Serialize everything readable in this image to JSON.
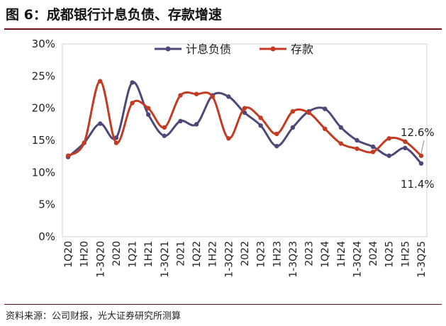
{
  "title": "图 6：成都银行计息负债、存款增速",
  "source": "资料来源：公司财报，光大证券研究所测算",
  "chart_data": {
    "type": "line",
    "categories": [
      "1Q20",
      "1H20",
      "1-3Q20",
      "2020",
      "1Q21",
      "1H21",
      "1-3Q21",
      "2021",
      "1Q22",
      "1H22",
      "1-3Q22",
      "2022",
      "1Q23",
      "1H23",
      "1-3Q23",
      "2023",
      "1Q24",
      "1H24",
      "1-3Q24",
      "2024",
      "1Q25",
      "1H25",
      "1-3Q25"
    ],
    "series": [
      {
        "name": "计息负债",
        "color": "#4d4878",
        "values": [
          12.4,
          14.6,
          17.6,
          15.4,
          24.0,
          19.0,
          15.7,
          18.0,
          17.5,
          22.0,
          21.8,
          19.3,
          17.3,
          14.1,
          17.0,
          19.5,
          19.9,
          17.0,
          15.0,
          14.0,
          12.6,
          13.8,
          11.4
        ]
      },
      {
        "name": "存款",
        "color": "#c23b22",
        "values": [
          12.6,
          14.6,
          24.2,
          14.6,
          20.8,
          20.0,
          17.0,
          22.0,
          22.2,
          21.8,
          15.3,
          20.0,
          18.5,
          16.0,
          19.5,
          19.3,
          16.8,
          14.5,
          13.7,
          13.2,
          15.3,
          14.8,
          12.6
        ]
      }
    ],
    "yticks": [
      "0%",
      "5%",
      "10%",
      "15%",
      "20%",
      "25%",
      "30%"
    ],
    "ylim": [
      0,
      30
    ],
    "legend": "top-center",
    "annotations": [
      "12.6%",
      "11.4%"
    ]
  }
}
